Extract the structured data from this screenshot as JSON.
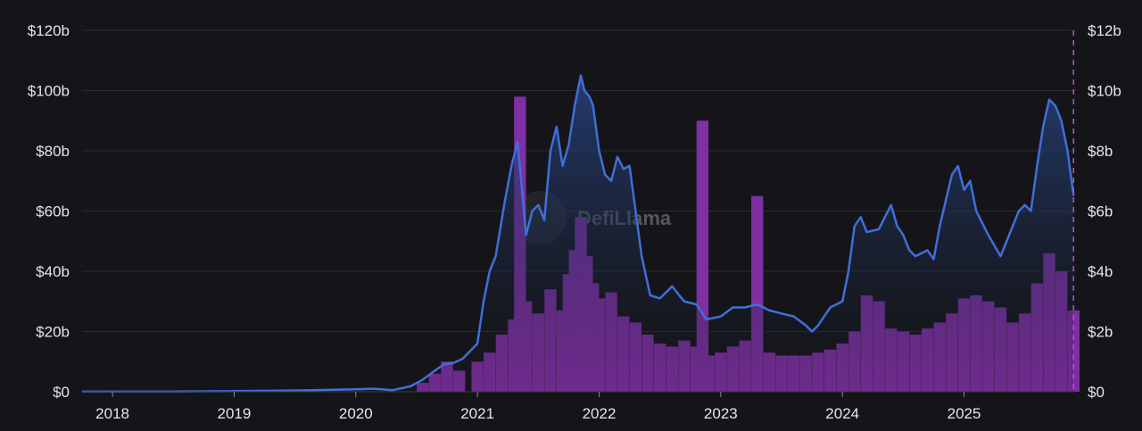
{
  "chart_data": {
    "type": "area",
    "title": "",
    "xlabel": "",
    "ylabel": "",
    "watermark": "DefiLlama",
    "x_ticks": [
      "2018",
      "2019",
      "2020",
      "2021",
      "2022",
      "2023",
      "2024",
      "2025"
    ],
    "x_tick_positions": [
      2018,
      2019,
      2020,
      2021,
      2022,
      2023,
      2024,
      2025
    ],
    "xlim": [
      2017.75,
      2025.92
    ],
    "y_left": {
      "ticks": [
        "$0",
        "$20b",
        "$40b",
        "$60b",
        "$80b",
        "$100b",
        "$120b"
      ],
      "tick_values": [
        0,
        20,
        40,
        60,
        80,
        100,
        120
      ],
      "ylim": [
        0,
        120
      ],
      "unit": "USD billions"
    },
    "y_right": {
      "ticks": [
        "$0",
        "$2b",
        "$4b",
        "$6b",
        "$8b",
        "$10b",
        "$12b"
      ],
      "tick_values": [
        0,
        2,
        4,
        6,
        8,
        10,
        12
      ],
      "ylim": [
        0,
        12
      ],
      "unit": "USD billions"
    },
    "grid": true,
    "legend": "none",
    "colors": {
      "background": "#151519",
      "grid": "#2a2a30",
      "line": "#3f6fd8",
      "bars": "#7e2fa2",
      "cursor": "#b64fd8"
    },
    "series": [
      {
        "type": "line",
        "axis": "left",
        "x": [
          2017.75,
          2018.0,
          2018.5,
          2019.0,
          2019.5,
          2020.0,
          2020.15,
          2020.3,
          2020.45,
          2020.55,
          2020.65,
          2020.72,
          2020.8,
          2020.88,
          2021.0,
          2021.05,
          2021.1,
          2021.15,
          2021.22,
          2021.28,
          2021.33,
          2021.36,
          2021.4,
          2021.45,
          2021.5,
          2021.55,
          2021.6,
          2021.65,
          2021.7,
          2021.75,
          2021.8,
          2021.85,
          2021.88,
          2021.92,
          2021.95,
          2022.0,
          2022.05,
          2022.1,
          2022.15,
          2022.2,
          2022.25,
          2022.3,
          2022.35,
          2022.42,
          2022.5,
          2022.6,
          2022.7,
          2022.8,
          2022.88,
          2023.0,
          2023.1,
          2023.2,
          2023.3,
          2023.4,
          2023.5,
          2023.6,
          2023.7,
          2023.75,
          2023.8,
          2023.9,
          2024.0,
          2024.05,
          2024.1,
          2024.15,
          2024.2,
          2024.3,
          2024.4,
          2024.45,
          2024.5,
          2024.55,
          2024.6,
          2024.7,
          2024.75,
          2024.8,
          2024.9,
          2024.95,
          2025.0,
          2025.05,
          2025.1,
          2025.2,
          2025.3,
          2025.4,
          2025.45,
          2025.5,
          2025.55,
          2025.6,
          2025.65,
          2025.7,
          2025.75,
          2025.8,
          2025.85,
          2025.9
        ],
        "y": [
          0.05,
          0.08,
          0.1,
          0.2,
          0.4,
          0.8,
          1.0,
          0.5,
          1.8,
          4,
          7,
          9,
          9.5,
          11,
          16,
          30,
          40,
          45,
          62,
          75,
          83,
          70,
          52,
          60,
          62,
          57,
          80,
          88,
          75,
          82,
          95,
          105,
          100,
          98,
          95,
          80,
          72,
          70,
          78,
          74,
          75,
          60,
          45,
          32,
          31,
          35,
          30,
          29,
          24,
          25,
          28,
          28,
          29,
          27,
          26,
          25,
          22,
          20,
          22,
          28,
          30,
          40,
          55,
          58,
          53,
          54,
          62,
          55,
          52,
          47,
          45,
          47,
          44,
          55,
          72,
          75,
          67,
          70,
          60,
          52,
          45,
          55,
          60,
          62,
          60,
          75,
          88,
          97,
          95,
          90,
          80,
          65
        ]
      },
      {
        "type": "bar",
        "axis": "right",
        "x": [
          2020.55,
          2020.65,
          2020.75,
          2020.85,
          2021.0,
          2021.1,
          2021.2,
          2021.3,
          2021.35,
          2021.4,
          2021.5,
          2021.6,
          2021.7,
          2021.75,
          2021.8,
          2021.85,
          2021.9,
          2021.95,
          2022.0,
          2022.1,
          2022.2,
          2022.3,
          2022.4,
          2022.5,
          2022.6,
          2022.7,
          2022.8,
          2022.85,
          2022.9,
          2023.0,
          2023.1,
          2023.2,
          2023.3,
          2023.4,
          2023.5,
          2023.6,
          2023.7,
          2023.8,
          2023.9,
          2024.0,
          2024.1,
          2024.2,
          2024.3,
          2024.4,
          2024.5,
          2024.6,
          2024.7,
          2024.8,
          2024.9,
          2025.0,
          2025.1,
          2025.2,
          2025.3,
          2025.4,
          2025.5,
          2025.6,
          2025.7,
          2025.8,
          2025.9
        ],
        "y": [
          0.3,
          0.6,
          1.0,
          0.7,
          1.0,
          1.3,
          1.9,
          2.4,
          9.8,
          3.0,
          2.6,
          3.4,
          2.7,
          3.9,
          4.7,
          5.8,
          4.5,
          3.6,
          3.1,
          3.3,
          2.5,
          2.3,
          1.9,
          1.6,
          1.5,
          1.7,
          1.5,
          9.0,
          1.2,
          1.3,
          1.5,
          1.7,
          6.5,
          1.3,
          1.2,
          1.2,
          1.2,
          1.3,
          1.4,
          1.6,
          2.0,
          3.2,
          3.0,
          2.1,
          2.0,
          1.9,
          2.1,
          2.3,
          2.6,
          3.1,
          3.2,
          3.0,
          2.8,
          2.3,
          2.6,
          3.6,
          4.6,
          4.0,
          2.7
        ]
      }
    ]
  }
}
